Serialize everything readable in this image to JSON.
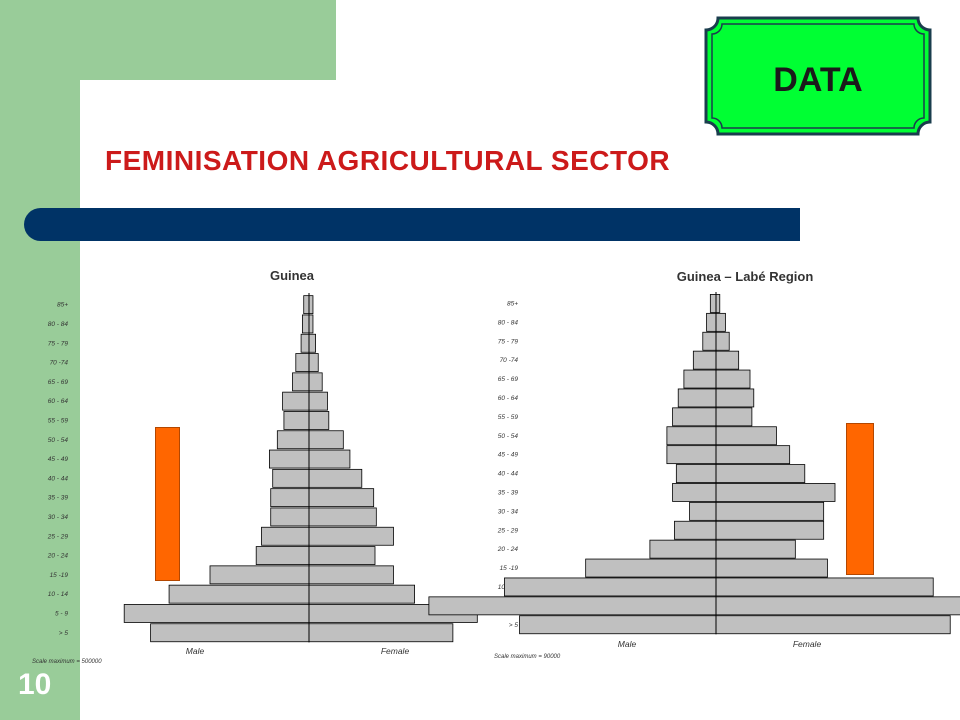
{
  "slide": {
    "page_number": "10",
    "badge_label": "DATA",
    "title": "FEMINISATION  AGRICULTURAL  SECTOR",
    "colors": {
      "green_band": "#99cc99",
      "badge_fill": "#00ff33",
      "title": "#cc1a1a",
      "rule": "#003366",
      "highlight": "#ff6600",
      "bars": "#c0c0c0"
    }
  },
  "chart_data": [
    {
      "type": "bar",
      "orientation": "horizontal",
      "layout": "population-pyramid",
      "title": "Guinea",
      "categories": [
        "85+",
        "80 - 84",
        "75 - 79",
        "70 -74",
        "65 - 69",
        "60 - 64",
        "55 - 59",
        "50 - 54",
        "45 - 49",
        "40 - 44",
        "35 - 39",
        "30 - 34",
        "25 - 29",
        "20 - 24",
        "15 -19",
        "10 - 14",
        "5 - 9",
        "> 5"
      ],
      "series": [
        {
          "name": "Male",
          "values": [
            8000,
            10000,
            12000,
            20000,
            25000,
            40000,
            38000,
            48000,
            60000,
            55000,
            58000,
            58000,
            72000,
            80000,
            150000,
            212000,
            280000,
            240000
          ]
        },
        {
          "name": "Female",
          "values": [
            6000,
            6000,
            10000,
            14000,
            20000,
            28000,
            30000,
            52000,
            62000,
            80000,
            98000,
            102000,
            128000,
            100000,
            128000,
            160000,
            255000,
            218000
          ]
        }
      ],
      "scale_max": 500000,
      "scale_note": "Scale maximum = 500000",
      "xlabel_left": "Male",
      "xlabel_right": "Female"
    },
    {
      "type": "bar",
      "orientation": "horizontal",
      "layout": "population-pyramid",
      "title": "Guinea – Labé Region",
      "categories": [
        "85+",
        "80 - 84",
        "75 - 79",
        "70 -74",
        "65 - 69",
        "60 - 64",
        "55 - 59",
        "50 - 54",
        "45 - 49",
        "40 - 44",
        "35 - 39",
        "30 - 34",
        "25 - 29",
        "20 - 24",
        "15 -19",
        "10 - 14",
        "5 - 9",
        "> 5"
      ],
      "series": [
        {
          "name": "Male",
          "values": [
            1500,
            2500,
            3500,
            6000,
            8500,
            10000,
            11500,
            13000,
            13000,
            10500,
            11500,
            7000,
            11000,
            17500,
            34500,
            56000,
            76000,
            52000
          ]
        },
        {
          "name": "Female",
          "values": [
            1000,
            2500,
            3500,
            6000,
            9000,
            10000,
            9500,
            16000,
            19500,
            23500,
            31500,
            28500,
            28500,
            21000,
            29500,
            57500,
            68500,
            62000
          ]
        }
      ],
      "scale_max": 90000,
      "scale_note": "Scale maximum = 90000",
      "xlabel_left": "Male",
      "xlabel_right": "Female"
    }
  ]
}
